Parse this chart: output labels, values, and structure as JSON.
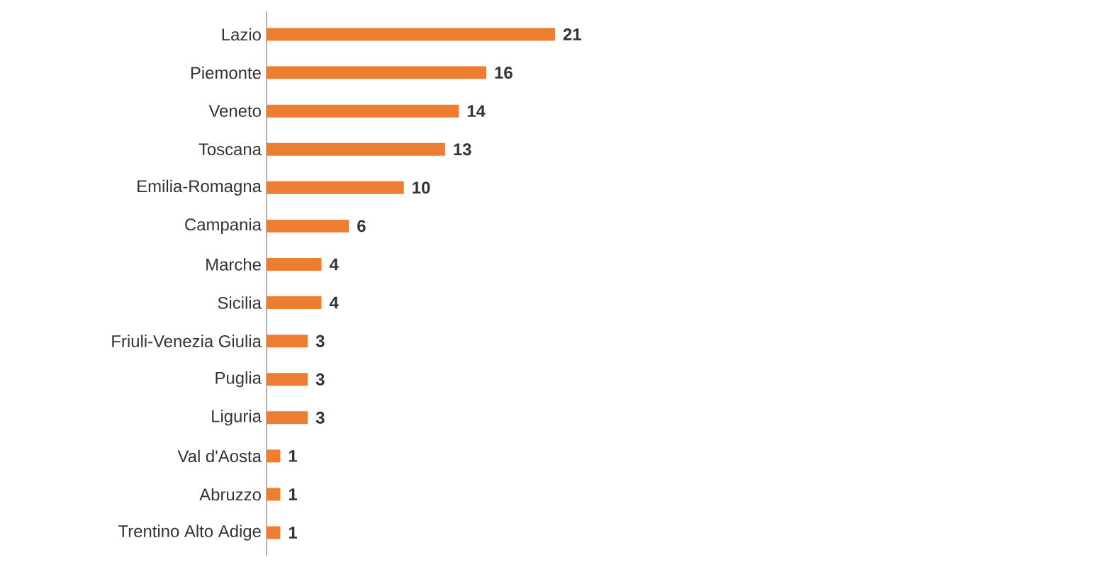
{
  "chart_data": {
    "type": "bar",
    "orientation": "horizontal",
    "data_labels": true,
    "categories": [
      "Lazio",
      "Piemonte",
      "Veneto",
      "Toscana",
      "Emilia-Romagna",
      "Campania",
      "Marche",
      "Sicilia",
      "Friuli-Venezia Giulia",
      "Puglia",
      "Liguria",
      "Val d'Aosta",
      "Abruzzo",
      "Trentino Alto Adige"
    ],
    "values": [
      21,
      16,
      14,
      13,
      10,
      6,
      4,
      4,
      3,
      3,
      3,
      1,
      1,
      1
    ],
    "color": "#ed7d31"
  }
}
